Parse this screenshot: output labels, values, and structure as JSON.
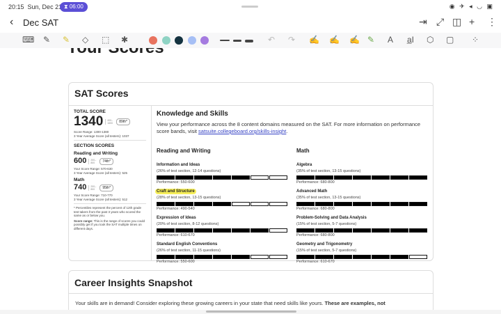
{
  "status": {
    "time": "20:15",
    "date": "Sun, Dec 21",
    "timer": "06:00"
  },
  "header": {
    "title": "Dec SAT"
  },
  "toolbar": {
    "colors": [
      "#e8735f",
      "#8fd3c4",
      "#143240",
      "#a6bff5",
      "#a57be0"
    ]
  },
  "page": {
    "heading": "Your Scores"
  },
  "sat": {
    "title": "SAT Scores",
    "total_label": "TOTAL SCORE",
    "total": "1340",
    "total_range": "400–1600",
    "total_pct": "89th*",
    "total_score_range": "Score Range: 1300-1380",
    "total_avg": "3 Year Average Score (all testers): 1037",
    "section_label": "SECTION SCORES",
    "rw_label": "Reading and Writing",
    "rw": "600",
    "rw_range": "200–800",
    "rw_pct": "74th*",
    "rw_score_range": "Your Score Range: 570-630",
    "rw_avg": "3 Year Average Score (all testers): 525",
    "math_label": "Math",
    "math": "740",
    "math_range": "200–800",
    "math_pct": "95th*",
    "math_score_range": "Your Score Range: 710-770",
    "math_avg": "3 Year Average Score (all testers): 512",
    "note1": "* Percentiles represent the percent of 12th grade test takers from the past 3 years who scored the same as or below you.",
    "note2_bold": "Score range:",
    "note2": " This is the range of scores you could possibly get if you took the SAT multiple times on different days."
  },
  "skills": {
    "title": "Knowledge and Skills",
    "desc": "View your performance across the 8 content domains measured on the SAT. For more information on performance score bands, visit ",
    "link": "satsuite.collegeboard.org/skills-insight",
    "desc_end": ".",
    "segments": 7,
    "columns": [
      {
        "title": "Reading and Writing",
        "domains": [
          {
            "name": "Information and Ideas",
            "sub": "(26% of test section, 12-14 questions)",
            "filled": 5,
            "perf": "Performance: 550-600"
          },
          {
            "name": "Craft and Structure",
            "sub": "(28% of test section, 13-15 questions)",
            "filled": 4,
            "perf": "Performance: 490-540",
            "highlight": true
          },
          {
            "name": "Expression of Ideas",
            "sub": "(20% of test section, 8-12 questions)",
            "filled": 6,
            "perf": "Performance: 610-670"
          },
          {
            "name": "Standard English Conventions",
            "sub": "(26% of test section, 11-15 questions)",
            "filled": 5,
            "perf": "Performance: 550-600"
          }
        ]
      },
      {
        "title": "Math",
        "domains": [
          {
            "name": "Algebra",
            "sub": "(35% of test section, 13-15 questions)",
            "filled": 7,
            "perf": "Performance: 680-800"
          },
          {
            "name": "Advanced Math",
            "sub": "(35% of test section, 13-15 questions)",
            "filled": 7,
            "perf": "Performance: 680-800"
          },
          {
            "name": "Problem-Solving and Data Analysis",
            "sub": "(15% of test section, 5-7 questions)",
            "filled": 7,
            "perf": "Performance: 680-800"
          },
          {
            "name": "Geometry and Trigonometry",
            "sub": "(15% of test section, 5-7 questions)",
            "filled": 6,
            "perf": "Performance: 610-670"
          }
        ]
      }
    ]
  },
  "career": {
    "title": "Career Insights Snapshot",
    "text": "Your skills are in demand! Consider exploring these growing careers in your state that need skills like yours. ",
    "text_bold": "These are examples, not"
  }
}
